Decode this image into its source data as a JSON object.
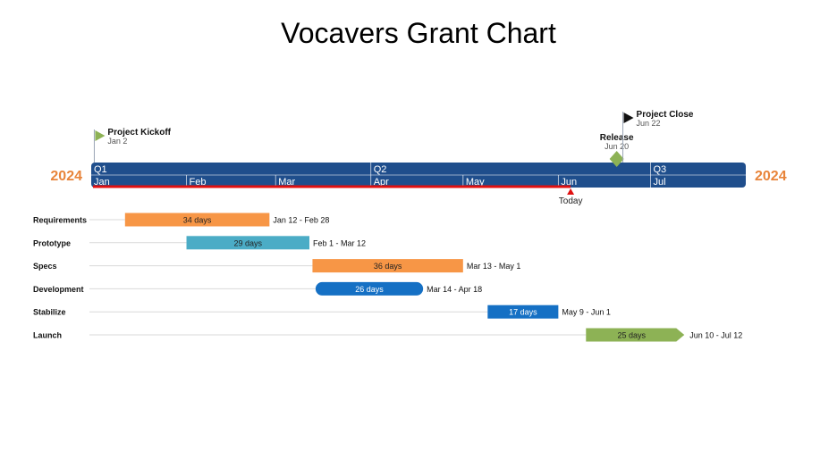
{
  "chart_data": {
    "type": "gantt",
    "title": "Vocavers Grant Chart",
    "year_left": "2024",
    "year_right": "2024",
    "quarters": [
      "Q1",
      "Q2",
      "Q3"
    ],
    "months": [
      "Jan",
      "Feb",
      "Mar",
      "Apr",
      "May",
      "Jun",
      "Jul"
    ],
    "today": {
      "label": "Today",
      "date": "2024-06-05"
    },
    "milestones": [
      {
        "name": "Project Kickoff",
        "date_label": "Jan 2",
        "date": "2024-01-02",
        "shape": "flag"
      },
      {
        "name": "Release",
        "date_label": "Jun 20",
        "date": "2024-06-20",
        "shape": "diamond"
      },
      {
        "name": "Project Close",
        "date_label": "Jun 22",
        "date": "2024-06-22",
        "shape": "flag"
      }
    ],
    "tasks": [
      {
        "name": "Requirements",
        "duration_label": "34 days",
        "date_label": "Jan 12 - Feb 28",
        "start": "2024-01-12",
        "end": "2024-02-28",
        "color": "#f79646",
        "shape": "rect"
      },
      {
        "name": "Prototype",
        "duration_label": "29 days",
        "date_label": "Feb 1 - Mar 12",
        "start": "2024-02-01",
        "end": "2024-03-12",
        "color": "#4bacc6",
        "shape": "rect"
      },
      {
        "name": "Specs",
        "duration_label": "36 days",
        "date_label": "Mar 13 - May 1",
        "start": "2024-03-13",
        "end": "2024-05-01",
        "color": "#f79646",
        "shape": "rect"
      },
      {
        "name": "Development",
        "duration_label": "26 days",
        "date_label": "Mar 14 - Apr 18",
        "start": "2024-03-14",
        "end": "2024-04-18",
        "color": "#1570c4",
        "shape": "rounded"
      },
      {
        "name": "Stabilize",
        "duration_label": "17 days",
        "date_label": "May 9 - Jun 1",
        "start": "2024-05-09",
        "end": "2024-06-01",
        "color": "#1570c4",
        "shape": "rect"
      },
      {
        "name": "Launch",
        "duration_label": "25 days",
        "date_label": "Jun 10 - Jul 12",
        "start": "2024-06-10",
        "end": "2024-07-12",
        "color": "#8db255",
        "shape": "arrow"
      }
    ],
    "colors": {
      "title": "#e01010",
      "year": "#e8843a",
      "timeline_band": "#1f4e8c",
      "today_line": "#e01010",
      "milestone_flag": "#8db255",
      "milestone_close": "#111111"
    }
  }
}
